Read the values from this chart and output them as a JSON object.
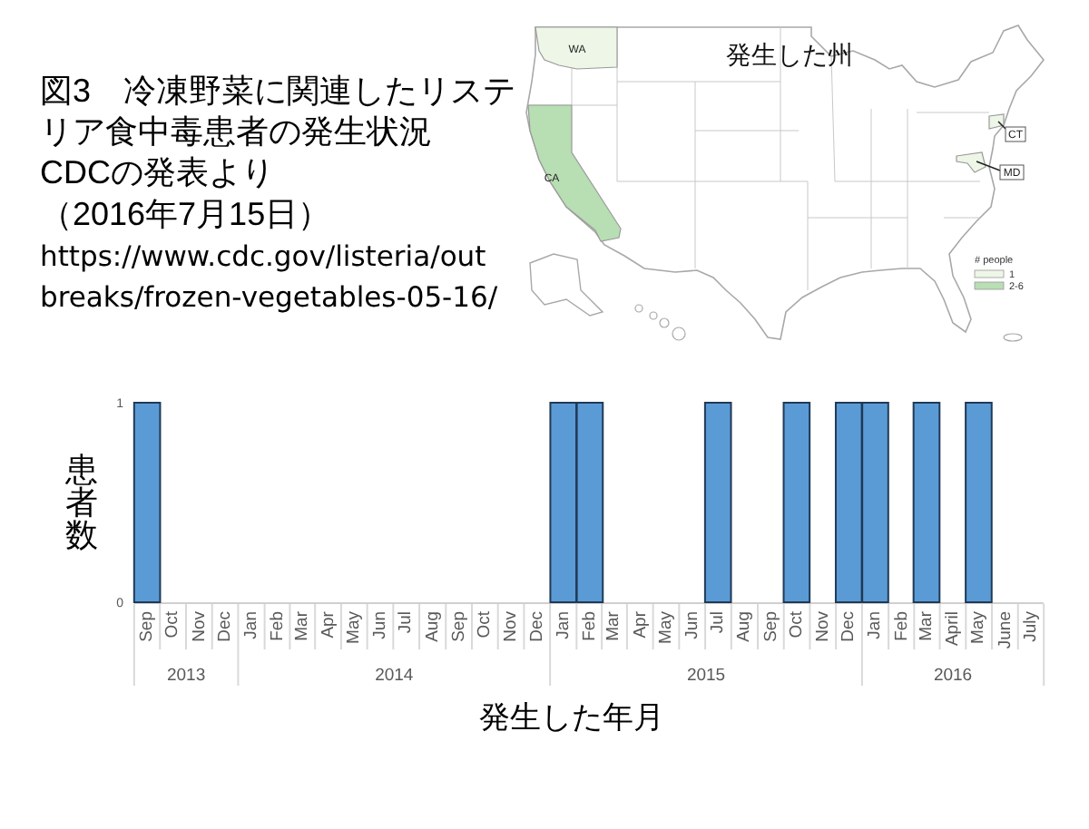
{
  "chart_data": [
    {
      "type": "other",
      "title": "図3　冷凍野菜に関連したリステリア食中毒患者の発生状況",
      "subtitle": "CDCの発表より（2016年7月15日）",
      "annotations": [
        "https://www.cdc.gov/listeria/outbreaks/frozen-vegetables-05-16/"
      ]
    },
    {
      "type": "other",
      "title": "発生した州",
      "categories": [
        "WA",
        "CA",
        "CT",
        "MD"
      ],
      "colors": [
        "#edf6e7",
        "#b8deb3",
        "#edf6e7",
        "#edf6e7"
      ],
      "legend_title": "# people",
      "series": [
        {
          "name": "1",
          "color": "#edf6e7",
          "values": [
            null,
            null,
            null,
            null
          ]
        },
        {
          "name": "2-6",
          "color": "#b8deb3",
          "values": [
            null,
            null,
            null,
            null
          ]
        }
      ],
      "legend": "bottom right"
    },
    {
      "type": "bar",
      "x": [
        "2013-09",
        "2013-10",
        "2013-11",
        "2013-12",
        "2014-01",
        "2014-02",
        "2014-03",
        "2014-04",
        "2014-05",
        "2014-06",
        "2014-07",
        "2014-08",
        "2014-09",
        "2014-10",
        "2014-11",
        "2014-12",
        "2015-01",
        "2015-02",
        "2015-03",
        "2015-04",
        "2015-05",
        "2015-06",
        "2015-07",
        "2015-08",
        "2015-09",
        "2015-10",
        "2015-11",
        "2015-12",
        "2016-01",
        "2016-02",
        "2016-03",
        "2016-04",
        "2016-05",
        "2016-06",
        "2016-07"
      ],
      "values": [
        1,
        0,
        0,
        0,
        0,
        0,
        0,
        0,
        0,
        0,
        0,
        0,
        0,
        0,
        0,
        0,
        1,
        1,
        0,
        0,
        0,
        0,
        1,
        0,
        0,
        1,
        0,
        1,
        1,
        0,
        1,
        0,
        1,
        0,
        0
      ],
      "color": "#5b9bd5",
      "xlim": [
        "2013-08-17",
        "2016-07-16"
      ],
      "xticks": [
        {
          "value": "2013-09",
          "label": "Sep"
        },
        {
          "value": "2013-10",
          "label": "Oct"
        },
        {
          "value": "2013-11",
          "label": "Nov"
        },
        {
          "value": "2013-12",
          "label": "Dec"
        },
        {
          "value": "2014-01",
          "label": "Jan"
        },
        {
          "value": "2014-02",
          "label": "Feb"
        },
        {
          "value": "2014-03",
          "label": "Mar"
        },
        {
          "value": "2014-04",
          "label": "Apr"
        },
        {
          "value": "2014-05",
          "label": "May"
        },
        {
          "value": "2014-06",
          "label": "Jun"
        },
        {
          "value": "2014-07",
          "label": "Jul"
        },
        {
          "value": "2014-08",
          "label": "Aug"
        },
        {
          "value": "2014-09",
          "label": "Sep"
        },
        {
          "value": "2014-10",
          "label": "Oct"
        },
        {
          "value": "2014-11",
          "label": "Nov"
        },
        {
          "value": "2014-12",
          "label": "Dec"
        },
        {
          "value": "2015-01",
          "label": "Jan"
        },
        {
          "value": "2015-02",
          "label": "Feb"
        },
        {
          "value": "2015-03",
          "label": "Mar"
        },
        {
          "value": "2015-04",
          "label": "Apr"
        },
        {
          "value": "2015-05",
          "label": "May"
        },
        {
          "value": "2015-06",
          "label": "Jun"
        },
        {
          "value": "2015-07",
          "label": "Jul"
        },
        {
          "value": "2015-08",
          "label": "Aug"
        },
        {
          "value": "2015-09",
          "label": "Sep"
        },
        {
          "value": "2015-10",
          "label": "Oct"
        },
        {
          "value": "2015-11",
          "label": "Nov"
        },
        {
          "value": "2015-12",
          "label": "Dec"
        },
        {
          "value": "2016-01",
          "label": "Jan"
        },
        {
          "value": "2016-02",
          "label": "Feb"
        },
        {
          "value": "2016-03",
          "label": "Mar"
        },
        {
          "value": "2016-04",
          "label": "April"
        },
        {
          "value": "2016-05",
          "label": "May"
        },
        {
          "value": "2016-06",
          "label": "June"
        },
        {
          "value": "2016-07",
          "label": "July"
        }
      ],
      "ylim": [
        0,
        1
      ],
      "yticks": [
        0,
        1
      ],
      "ylabel": "患者数",
      "xlabel": "発生した年月",
      "annotations": [
        "2013",
        "2014",
        "2015",
        "2016"
      ]
    }
  ]
}
